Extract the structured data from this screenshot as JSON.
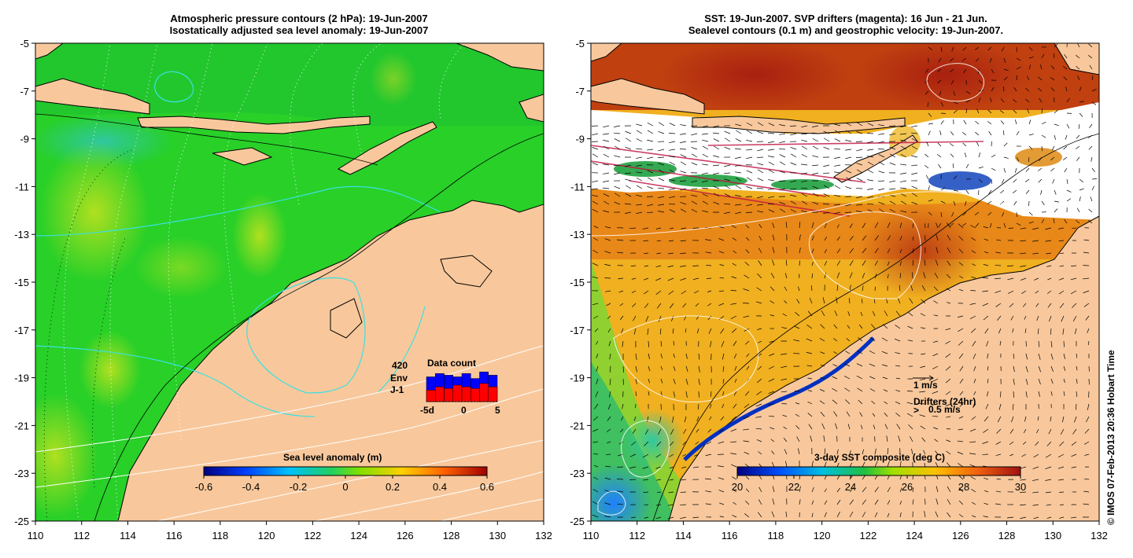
{
  "left_panel": {
    "title_line1": "Atmospheric pressure contours (2 hPa): 19-Jun-2007",
    "title_line2": "Isostatically adjusted sea level anomaly: 19-Jun-2007",
    "colorbar": {
      "label": "Sea level anomaly (m)",
      "ticks": [
        "-0.6",
        "-0.4",
        "-0.2",
        "0",
        "0.2",
        "0.4",
        "0.6"
      ],
      "range": [
        -0.6,
        0.6
      ]
    },
    "inset": {
      "title": "Data count",
      "count": "420",
      "series": [
        {
          "name": "Env",
          "color": "#0000ff"
        },
        {
          "name": "J-1",
          "color": "#ff0000"
        }
      ],
      "xticks": [
        "-5d",
        "0",
        "5"
      ],
      "env_values": [
        0.75,
        0.85,
        0.8,
        0.75,
        0.85,
        0.7,
        0.9,
        0.8
      ],
      "j1_values": [
        0.35,
        0.45,
        0.4,
        0.5,
        0.45,
        0.4,
        0.55,
        0.45
      ]
    }
  },
  "right_panel": {
    "title_line1": "SST: 19-Jun-2007. SVP drifters (magenta): 16 Jun - 21 Jun.",
    "title_line2": "Sealevel contours (0.1 m) and geostrophic velocity: 19-Jun-2007.",
    "colorbar": {
      "label": "3-day SST composite (deg C)",
      "ticks": [
        "20",
        "22",
        "24",
        "26",
        "28",
        "30"
      ],
      "range": [
        20,
        30
      ]
    },
    "velocity_key": "1 m/s",
    "drifters_key": "Drifters (24hr)",
    "drifters_speed": "0.5 m/s",
    "drifters_symbol": ">"
  },
  "axes": {
    "lon_ticks": [
      "110",
      "112",
      "114",
      "116",
      "118",
      "120",
      "122",
      "124",
      "126",
      "128",
      "130",
      "132"
    ],
    "lat_ticks": [
      "-5",
      "-7",
      "-9",
      "-11",
      "-13",
      "-15",
      "-17",
      "-19",
      "-21",
      "-23",
      "-25"
    ],
    "lon_range": [
      110,
      132
    ],
    "lat_range": [
      -25,
      -5
    ]
  },
  "credit": "© IMOS 07-Feb-2013 20:36 Hobart Time",
  "colors": {
    "land": "#f8c89c",
    "sea_level_base": "#22cc22",
    "sst_warm": "#e07010",
    "sst_hot": "#b03010",
    "sst_mid": "#f0b020"
  }
}
